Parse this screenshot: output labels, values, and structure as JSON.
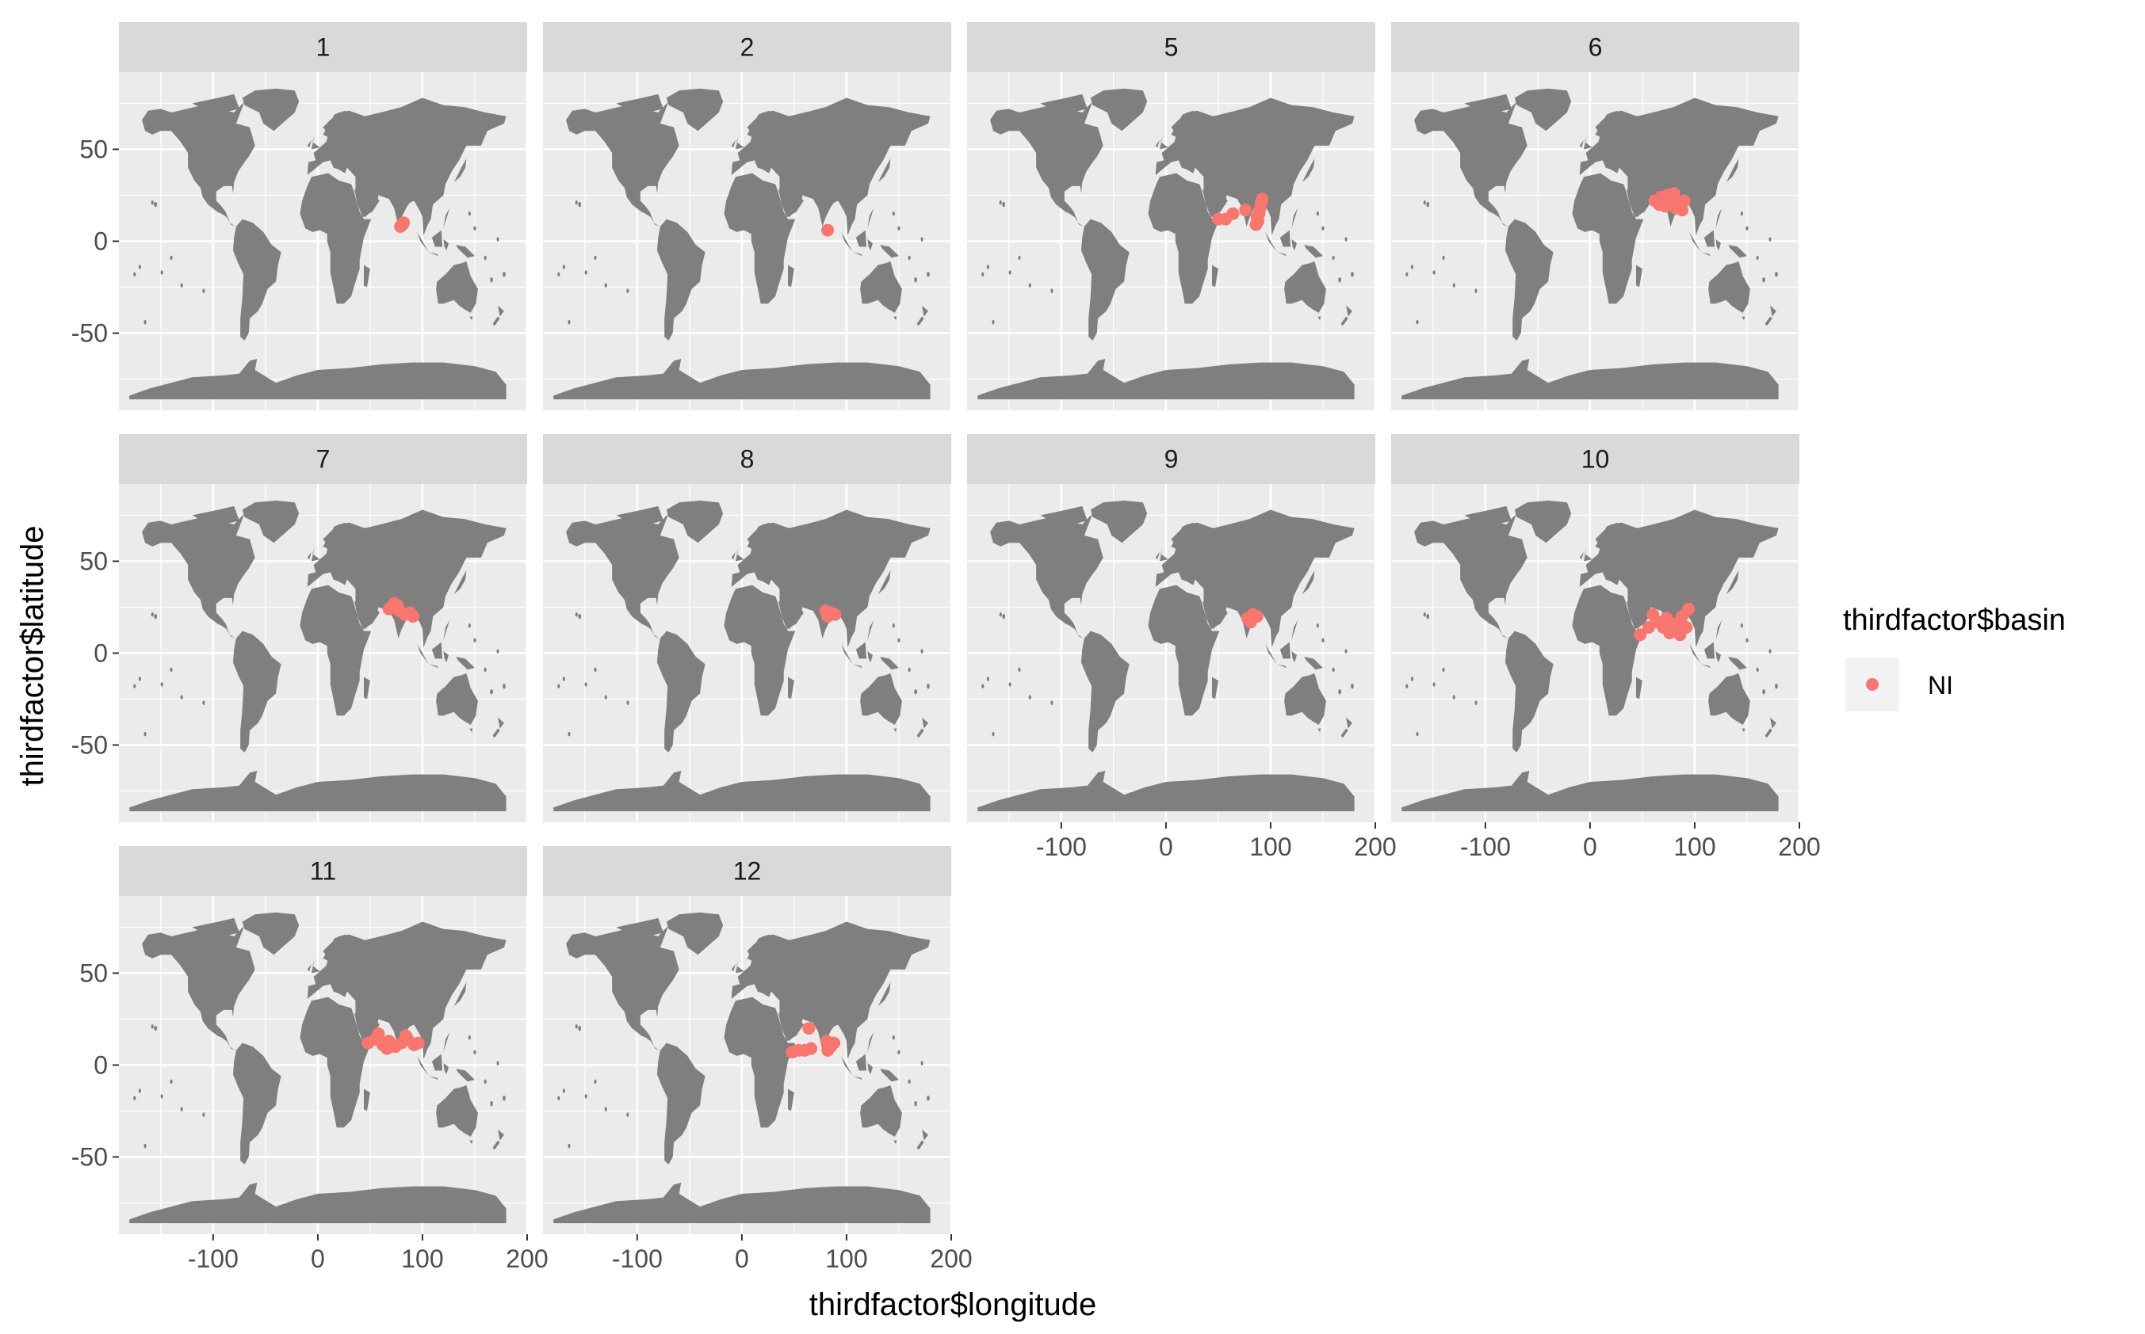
{
  "chart_data": {
    "type": "scatter",
    "facet_by": "month",
    "xlabel": "thirdfactor$longitude",
    "ylabel": "thirdfactor$latitude",
    "xlim": [
      -190,
      200
    ],
    "ylim": [
      -92,
      92
    ],
    "x_ticks": [
      -100,
      0,
      100,
      200
    ],
    "x_tick_labels": [
      "-100",
      "0",
      "100",
      "200"
    ],
    "y_ticks": [
      -50,
      0,
      50
    ],
    "y_tick_labels": [
      "-50",
      "0",
      "50"
    ],
    "grid": true,
    "background_map": "world land polygons",
    "legend": {
      "title": "thirdfactor$basin",
      "placement": "right",
      "entries": [
        {
          "label": "NI",
          "color": "#F8766D"
        }
      ]
    },
    "colors": {
      "points": "#F8766D",
      "land": "#7F7F7F",
      "panel_bg": "#EBEBEB",
      "strip_bg": "#D9D9D9",
      "grid": "#FFFFFF"
    },
    "panels": [
      {
        "label": "1",
        "points": [
          [
            81,
            9
          ],
          [
            79,
            8
          ],
          [
            82,
            10
          ]
        ]
      },
      {
        "label": "2",
        "points": [
          [
            82,
            6
          ]
        ]
      },
      {
        "label": "5",
        "points": [
          [
            50,
            12
          ],
          [
            57,
            12
          ],
          [
            64,
            15
          ],
          [
            76,
            17
          ],
          [
            88,
            11
          ],
          [
            89,
            15
          ],
          [
            90,
            18
          ],
          [
            91,
            21
          ],
          [
            92,
            23
          ],
          [
            87,
            13
          ],
          [
            86,
            9
          ]
        ]
      },
      {
        "label": "6",
        "points": [
          [
            62,
            22
          ],
          [
            66,
            20
          ],
          [
            70,
            23
          ],
          [
            74,
            25
          ],
          [
            78,
            22
          ],
          [
            82,
            18
          ],
          [
            86,
            21
          ],
          [
            90,
            22
          ],
          [
            72,
            19
          ],
          [
            68,
            24
          ],
          [
            80,
            26
          ],
          [
            88,
            17
          ]
        ]
      },
      {
        "label": "7",
        "points": [
          [
            68,
            24
          ],
          [
            73,
            27
          ],
          [
            78,
            23
          ],
          [
            83,
            21
          ],
          [
            88,
            22
          ],
          [
            91,
            20
          ],
          [
            76,
            26
          ]
        ]
      },
      {
        "label": "8",
        "points": [
          [
            80,
            23
          ],
          [
            85,
            22
          ],
          [
            89,
            21
          ],
          [
            82,
            20
          ]
        ]
      },
      {
        "label": "9",
        "points": [
          [
            78,
            19
          ],
          [
            83,
            21
          ],
          [
            87,
            20
          ],
          [
            81,
            17
          ]
        ]
      },
      {
        "label": "10",
        "points": [
          [
            48,
            10
          ],
          [
            56,
            14
          ],
          [
            64,
            17
          ],
          [
            70,
            14
          ],
          [
            76,
            11
          ],
          [
            82,
            16
          ],
          [
            88,
            20
          ],
          [
            92,
            14
          ],
          [
            86,
            10
          ],
          [
            60,
            21
          ],
          [
            94,
            24
          ],
          [
            73,
            19
          ]
        ]
      },
      {
        "label": "11",
        "points": [
          [
            48,
            12
          ],
          [
            55,
            14
          ],
          [
            62,
            11
          ],
          [
            68,
            13
          ],
          [
            74,
            10
          ],
          [
            80,
            12
          ],
          [
            86,
            14
          ],
          [
            92,
            11
          ],
          [
            58,
            17
          ],
          [
            84,
            16
          ],
          [
            96,
            12
          ],
          [
            66,
            9
          ]
        ]
      },
      {
        "label": "12",
        "points": [
          [
            48,
            7
          ],
          [
            54,
            8
          ],
          [
            60,
            8
          ],
          [
            66,
            9
          ],
          [
            64,
            20
          ],
          [
            81,
            13
          ],
          [
            85,
            10
          ],
          [
            88,
            12
          ],
          [
            82,
            8
          ]
        ]
      }
    ]
  }
}
